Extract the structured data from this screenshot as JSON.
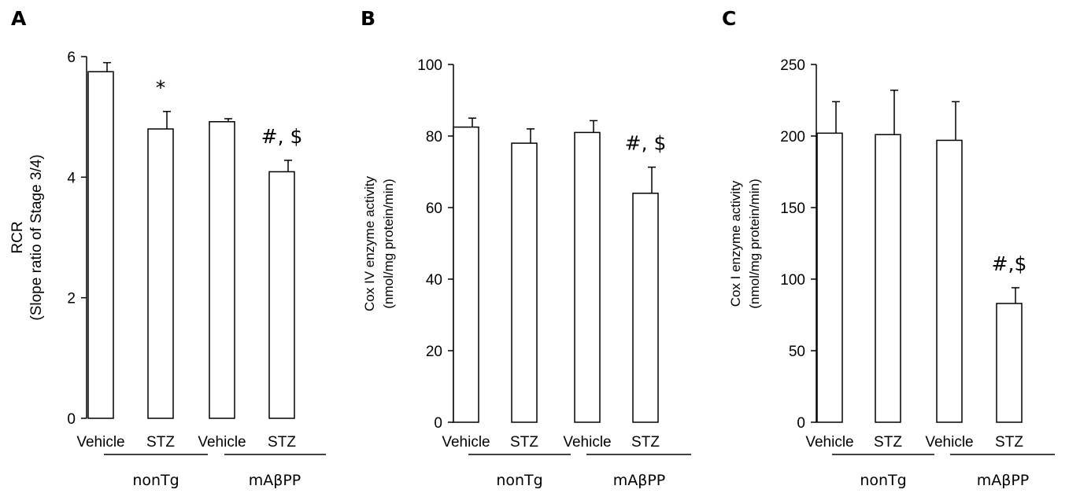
{
  "chart_data": [
    {
      "type": "bar",
      "panel_label": "A",
      "categories": [
        "Vehicle",
        "STZ",
        "Vehicle",
        "STZ"
      ],
      "groups": [
        {
          "label": "nonTg",
          "categories": [
            0,
            1
          ]
        },
        {
          "label": "mAβPP",
          "categories": [
            2,
            3
          ]
        }
      ],
      "values": [
        5.75,
        4.8,
        4.92,
        4.09
      ],
      "errors": [
        0.15,
        0.29,
        0.05,
        0.19
      ],
      "annotations": [
        "",
        "*",
        "",
        "#, $"
      ],
      "ylabel_lines": [
        "RCR",
        "(Slope ratio of Stage 3/4)"
      ],
      "ylim": [
        0,
        6
      ],
      "yticks": [
        0,
        2,
        4,
        6
      ],
      "ytick_labels": [
        "0",
        "2",
        "4",
        "6"
      ],
      "grid": false
    },
    {
      "type": "bar",
      "panel_label": "B",
      "categories": [
        "Vehicle",
        "STZ",
        "Vehicle",
        "STZ"
      ],
      "groups": [
        {
          "label": "nonTg",
          "categories": [
            0,
            1
          ]
        },
        {
          "label": "mAβPP",
          "categories": [
            2,
            3
          ]
        }
      ],
      "values": [
        82.5,
        78,
        81,
        64
      ],
      "errors": [
        2.5,
        4,
        3.3,
        7.3
      ],
      "annotations": [
        "",
        "",
        "",
        "#, $"
      ],
      "ylabel_lines": [
        "Cox IV enzyme activity",
        "(nmol/mg protein/min)"
      ],
      "ylim": [
        0,
        100
      ],
      "yticks": [
        0,
        20,
        40,
        60,
        80,
        100
      ],
      "ytick_labels": [
        "0",
        "20",
        "40",
        "60",
        "80",
        "100"
      ],
      "grid": false
    },
    {
      "type": "bar",
      "panel_label": "C",
      "categories": [
        "Vehicle",
        "STZ",
        "Vehicle",
        "STZ"
      ],
      "groups": [
        {
          "label": "nonTg",
          "categories": [
            0,
            1
          ]
        },
        {
          "label": "mAβPP",
          "categories": [
            2,
            3
          ]
        }
      ],
      "values": [
        202,
        201,
        197,
        83
      ],
      "errors": [
        22,
        31,
        27,
        11
      ],
      "annotations": [
        "",
        "",
        "",
        "#,$"
      ],
      "ylabel_lines": [
        "Cox I enzyme activity",
        "(nmol/mg protein/min)"
      ],
      "ylim": [
        0,
        250
      ],
      "yticks": [
        0,
        50,
        100,
        150,
        200,
        250
      ],
      "ytick_labels": [
        "0",
        "50",
        "100",
        "150",
        "200",
        "250"
      ],
      "grid": false
    }
  ]
}
